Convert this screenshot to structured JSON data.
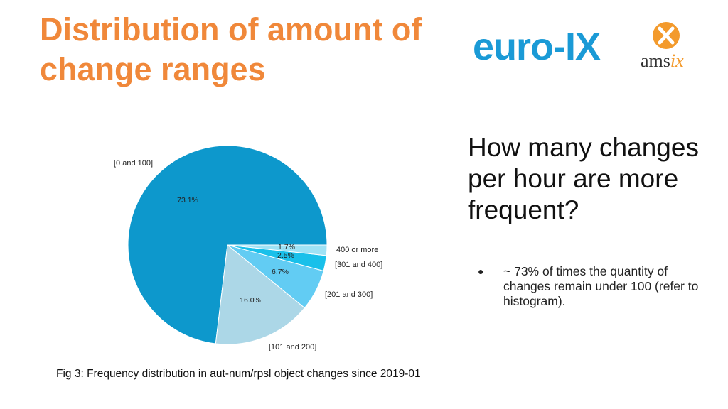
{
  "slide": {
    "title": "Distribution of amount of change ranges",
    "question": "How many changes per hour are more frequent?",
    "bullet": "~ 73% of times the quantity of changes remain under 100 (refer to histogram).",
    "bullet_marker": "●",
    "caption": "Fig 3: Frequency distribution in aut-num/rpsl object changes since 2019-01"
  },
  "logos": {
    "euro_ix": "euro-IX",
    "ams_prefix": "ams",
    "ams_suffix": "ix",
    "ams_color": "#f39a2c",
    "euro_ix_color": "#1a9ad6"
  },
  "chart_data": {
    "type": "pie",
    "title": "",
    "start_angle_deg": 0,
    "direction": "counterclockwise",
    "slices": [
      {
        "label": "[0 and 100]",
        "value": 73.1,
        "pct_label": "73.1%",
        "color": "#0d98cc"
      },
      {
        "label": "[101 and 200]",
        "value": 16.0,
        "pct_label": "16.0%",
        "color": "#acd7e7"
      },
      {
        "label": "[201 and 300]",
        "value": 6.7,
        "pct_label": "6.7%",
        "color": "#62ccf3"
      },
      {
        "label": "[301 and 400]",
        "value": 2.5,
        "pct_label": "2.5%",
        "color": "#19c0ea"
      },
      {
        "label": "400 or more",
        "value": 1.7,
        "pct_label": "1.7%",
        "color": "#9fe2f5"
      }
    ]
  }
}
